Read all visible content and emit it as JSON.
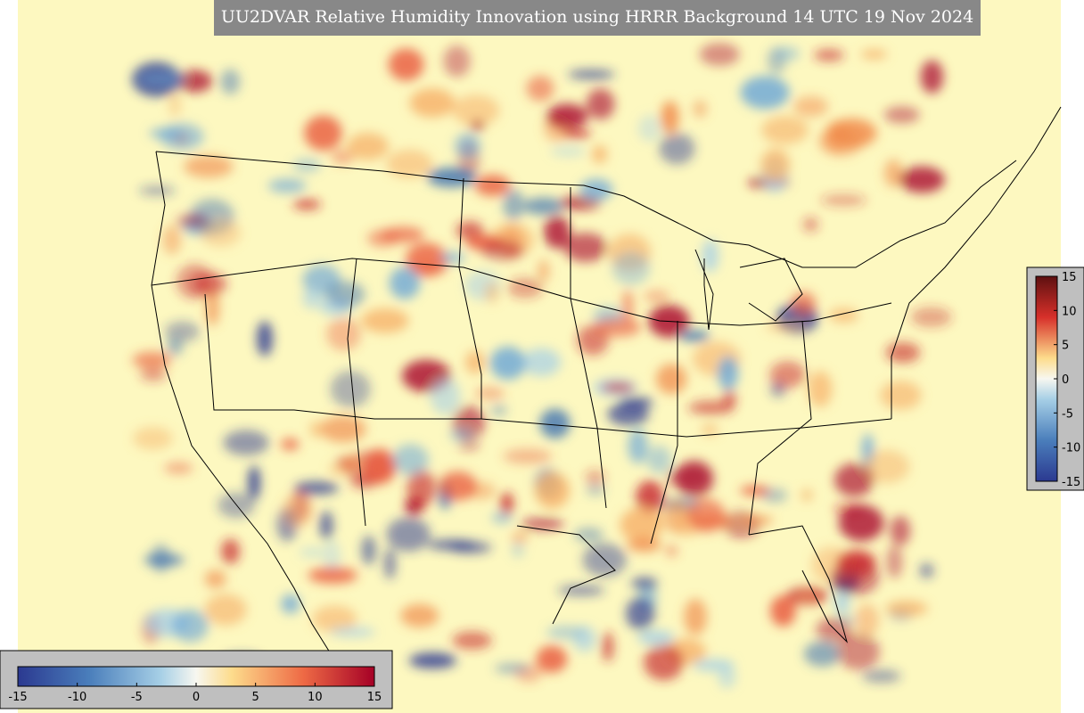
{
  "title": "UU2DVAR Relative Humidity Innovation using HRRR Background 14 UTC 19 Nov 2024",
  "colorbars": [
    {
      "orientation": "horizontal",
      "lim": [
        -15,
        15
      ],
      "ticks": [
        -15,
        -10,
        -5,
        0,
        5,
        10,
        15
      ]
    },
    {
      "orientation": "vertical",
      "lim": [
        -15,
        15
      ],
      "ticks": [
        15,
        10,
        5,
        0,
        -5,
        -10,
        -15
      ]
    }
  ]
}
